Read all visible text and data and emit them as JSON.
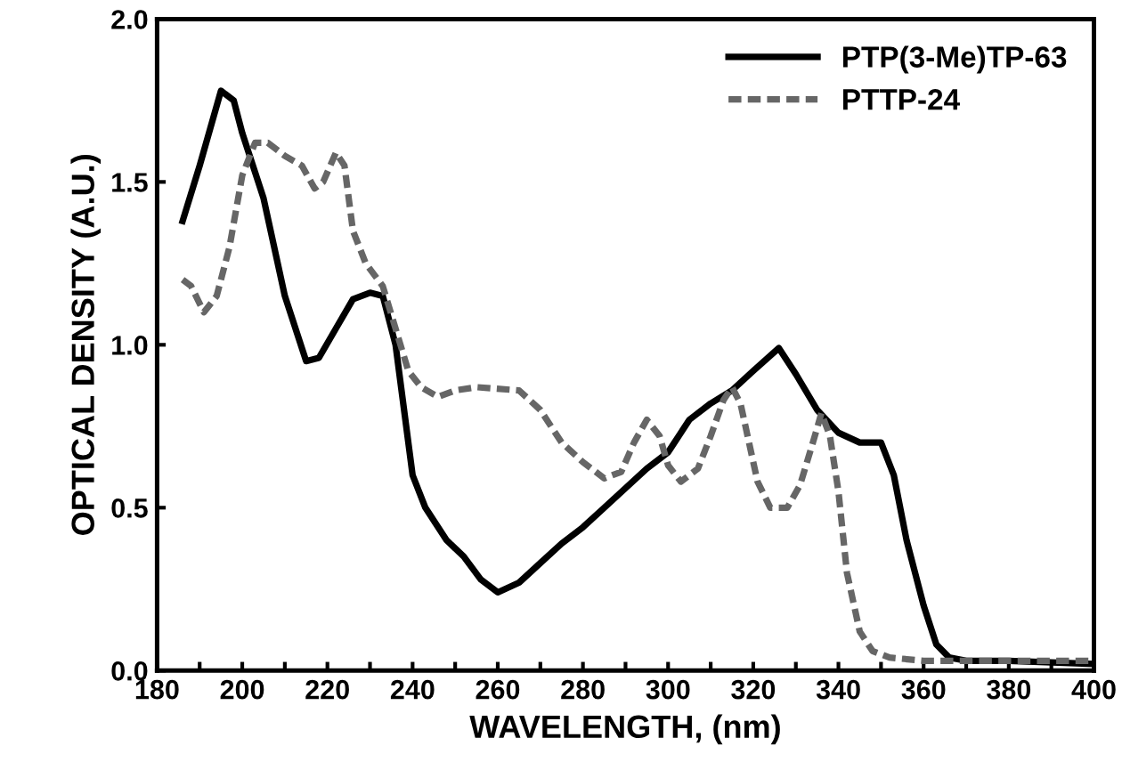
{
  "chart_data": {
    "type": "line",
    "xlabel": "WAVELENGTH, (nm)",
    "ylabel": "OPTICAL DENSITY (A.U.)",
    "xlim": [
      180,
      400
    ],
    "ylim": [
      0,
      2.0
    ],
    "xticks": [
      180,
      {
        "value": 190,
        "label": null
      },
      200,
      {
        "value": 210,
        "label": null
      },
      220,
      {
        "value": 230,
        "label": null
      },
      240,
      {
        "value": 250,
        "label": null
      },
      260,
      {
        "value": 270,
        "label": null
      },
      280,
      {
        "value": 290,
        "label": null
      },
      300,
      {
        "value": 310,
        "label": null
      },
      320,
      {
        "value": 330,
        "label": null
      },
      340,
      {
        "value": 350,
        "label": null
      },
      360,
      {
        "value": 370,
        "label": null
      },
      380,
      {
        "value": 390,
        "label": null
      },
      400
    ],
    "yticks": [
      {
        "value": 0,
        "label": "0.0"
      },
      0.5,
      {
        "value": 1,
        "label": "1.0"
      },
      1.5,
      {
        "value": 2,
        "label": "2.0"
      }
    ],
    "grid": false,
    "legend": "top right",
    "marker": "none",
    "series": [
      {
        "name": "PTP(3-Me)TP-63",
        "color": "#000000",
        "line_style": "solid",
        "x": [
          186,
          190,
          195,
          198,
          200,
          205,
          210,
          215,
          218,
          222,
          226,
          230,
          233,
          236,
          238,
          240,
          243,
          248,
          252,
          256,
          260,
          265,
          270,
          275,
          280,
          285,
          290,
          295,
          300,
          305,
          310,
          315,
          320,
          326,
          330,
          335,
          340,
          345,
          350,
          353,
          356,
          360,
          363,
          366,
          370,
          380,
          400
        ],
        "values": [
          1.38,
          1.55,
          1.78,
          1.75,
          1.65,
          1.45,
          1.15,
          0.95,
          0.96,
          1.05,
          1.14,
          1.16,
          1.15,
          1.0,
          0.8,
          0.6,
          0.5,
          0.4,
          0.35,
          0.28,
          0.24,
          0.27,
          0.33,
          0.39,
          0.44,
          0.5,
          0.56,
          0.62,
          0.67,
          0.77,
          0.82,
          0.86,
          0.92,
          0.99,
          0.91,
          0.8,
          0.73,
          0.7,
          0.7,
          0.6,
          0.4,
          0.2,
          0.08,
          0.04,
          0.03,
          0.03,
          0.02
        ]
      },
      {
        "name": "PTTP-24",
        "color": "#666666",
        "line_style": "dashed",
        "x": [
          186,
          188,
          191,
          194,
          197,
          200,
          203,
          206,
          210,
          214,
          217,
          219,
          222,
          224,
          226,
          229,
          233,
          236,
          239,
          242,
          246,
          250,
          255,
          265,
          270,
          275,
          280,
          285,
          289,
          292,
          295,
          298,
          300,
          303,
          307,
          310,
          313,
          315,
          317,
          319,
          321,
          324,
          328,
          331,
          334,
          336,
          338,
          340,
          342,
          345,
          348,
          352,
          360,
          380,
          400
        ],
        "values": [
          1.2,
          1.18,
          1.1,
          1.15,
          1.3,
          1.52,
          1.62,
          1.62,
          1.58,
          1.55,
          1.48,
          1.5,
          1.59,
          1.55,
          1.35,
          1.25,
          1.18,
          1.05,
          0.92,
          0.87,
          0.84,
          0.86,
          0.87,
          0.86,
          0.8,
          0.7,
          0.64,
          0.59,
          0.61,
          0.7,
          0.77,
          0.72,
          0.63,
          0.58,
          0.62,
          0.72,
          0.83,
          0.87,
          0.82,
          0.7,
          0.58,
          0.5,
          0.5,
          0.57,
          0.7,
          0.79,
          0.72,
          0.55,
          0.3,
          0.12,
          0.06,
          0.04,
          0.03,
          0.03,
          0.03
        ]
      }
    ]
  }
}
